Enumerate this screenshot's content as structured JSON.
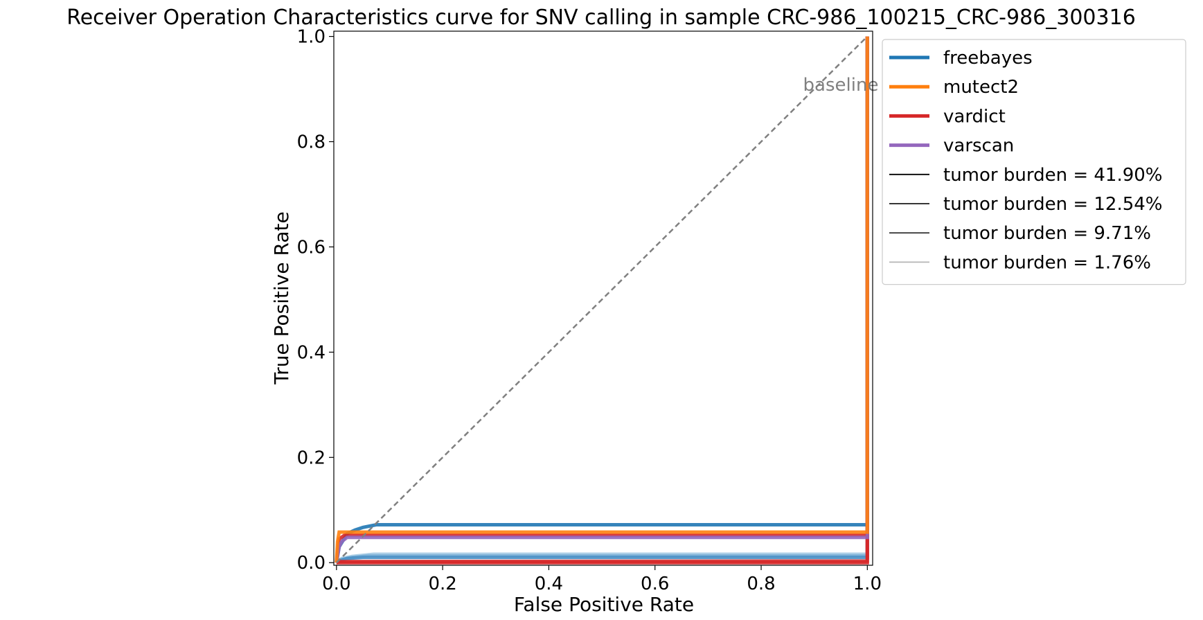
{
  "chart_data": {
    "type": "line",
    "title": "Receiver Operation Characteristics curve for SNV calling in sample CRC-986_100215_CRC-986_300316",
    "xlabel": "False Positive Rate",
    "ylabel": "True Positive Rate",
    "xlim": [
      -0.005,
      1.01
    ],
    "ylim": [
      -0.005,
      1.01
    ],
    "xticks": [
      0.0,
      0.2,
      0.4,
      0.6,
      0.8,
      1.0
    ],
    "yticks": [
      0.0,
      0.2,
      0.4,
      0.6,
      0.8,
      1.0
    ],
    "xtick_labels": [
      "0.0",
      "0.2",
      "0.4",
      "0.6",
      "0.8",
      "1.0"
    ],
    "ytick_labels": [
      "0.0",
      "0.2",
      "0.4",
      "0.6",
      "0.8",
      "1.0"
    ],
    "grid": false,
    "legend_position": "outside-upper-right",
    "baseline": {
      "label": "baseline",
      "color": "#808080",
      "x": [
        0.0,
        1.0
      ],
      "y": [
        0.0,
        1.0
      ],
      "label_at": [
        0.95,
        0.91
      ]
    },
    "legend": [
      {
        "label": "freebayes",
        "color": "#1f77b4",
        "kind": "caller"
      },
      {
        "label": "mutect2",
        "color": "#ff7f0e",
        "kind": "caller"
      },
      {
        "label": "vardict",
        "color": "#d62728",
        "kind": "caller"
      },
      {
        "label": "varscan",
        "color": "#9467bd",
        "kind": "caller"
      },
      {
        "label": "tumor burden = 41.90%",
        "color": "#000000",
        "kind": "burden"
      },
      {
        "label": "tumor burden = 12.54%",
        "color": "#1a1a1a",
        "kind": "burden"
      },
      {
        "label": "tumor burden = 9.71%",
        "color": "#3a3a3a",
        "kind": "burden"
      },
      {
        "label": "tumor burden = 1.76%",
        "color": "#b5b5b5",
        "kind": "burden"
      }
    ],
    "series": [
      {
        "caller": "freebayes",
        "burden": "tumor burden = 1.76%",
        "color": "#a9cde6",
        "x": [
          0.0,
          0.01,
          0.03,
          0.07,
          1.0,
          1.0
        ],
        "y": [
          0.0,
          0.008,
          0.012,
          0.016,
          0.016,
          1.0
        ]
      },
      {
        "caller": "freebayes",
        "burden": "tumor burden = 9.71%",
        "color": "#7fb3d8",
        "x": [
          0.0,
          0.01,
          0.03,
          0.06,
          1.0,
          1.0
        ],
        "y": [
          0.0,
          0.006,
          0.01,
          0.013,
          0.013,
          1.0
        ]
      },
      {
        "caller": "freebayes",
        "burden": "tumor burden = 12.54%",
        "color": "#4a8fc4",
        "x": [
          0.0,
          0.01,
          0.02,
          0.05,
          1.0,
          1.0
        ],
        "y": [
          0.0,
          0.005,
          0.008,
          0.01,
          0.01,
          1.0
        ]
      },
      {
        "caller": "freebayes",
        "burden": "tumor burden = 41.90%",
        "color": "#1f77b4",
        "x": [
          0.0,
          0.005,
          0.02,
          0.035,
          0.05,
          0.075,
          1.0,
          1.0
        ],
        "y": [
          0.0,
          0.03,
          0.055,
          0.062,
          0.067,
          0.072,
          0.072,
          1.0
        ]
      },
      {
        "caller": "vardict",
        "burden": "tumor burden = 1.76%",
        "color": "#d62728",
        "x": [
          0.0,
          1.0,
          1.0
        ],
        "y": [
          0.0,
          0.0,
          1.0
        ]
      },
      {
        "caller": "vardict",
        "burden": "tumor burden = 12.54%",
        "color": "#d62728",
        "x": [
          0.0,
          0.005,
          1.0,
          1.0
        ],
        "y": [
          0.0,
          0.002,
          0.003,
          1.0
        ]
      },
      {
        "caller": "vardict",
        "burden": "tumor burden = 41.90%",
        "color": "#d62728",
        "x": [
          0.0,
          0.005,
          0.015,
          1.0,
          1.0
        ],
        "y": [
          0.0,
          0.045,
          0.052,
          0.052,
          1.0
        ]
      },
      {
        "caller": "varscan",
        "burden": "tumor burden = 41.90%",
        "color": "#9467bd",
        "x": [
          0.0,
          0.005,
          0.01,
          0.02,
          1.0,
          1.0
        ],
        "y": [
          0.0,
          0.03,
          0.04,
          0.048,
          0.048,
          1.0
        ]
      },
      {
        "caller": "mutect2",
        "burden": "tumor burden = 41.90%",
        "color": "#ff7f0e",
        "x": [
          0.0,
          0.002,
          0.005,
          0.1,
          1.0,
          1.0
        ],
        "y": [
          0.0,
          0.04,
          0.058,
          0.058,
          0.058,
          1.0
        ]
      }
    ]
  }
}
